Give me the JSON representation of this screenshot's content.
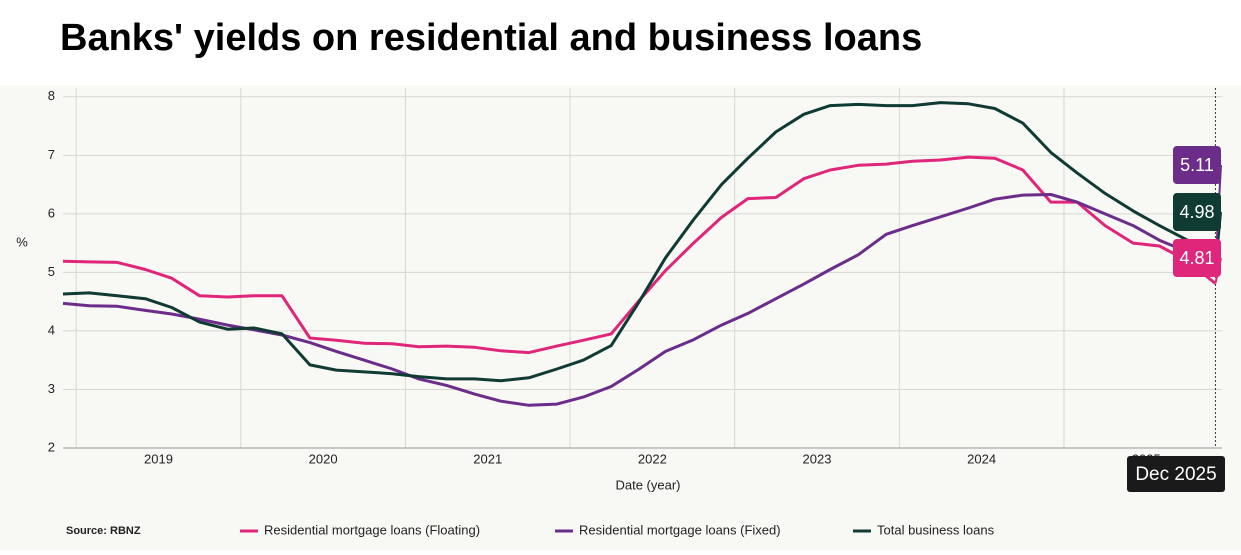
{
  "chart_data": {
    "type": "line",
    "title": "Banks' yields on residential and business loans",
    "y_label": "%",
    "x_label": "Date (year)",
    "source": "Source:  RBNZ",
    "hover_label": "Dec 2025",
    "x": [
      2018.92,
      2019.08,
      2019.25,
      2019.42,
      2019.58,
      2019.75,
      2019.92,
      2020.08,
      2020.25,
      2020.42,
      2020.58,
      2020.75,
      2020.92,
      2021.08,
      2021.25,
      2021.42,
      2021.58,
      2021.75,
      2021.92,
      2022.08,
      2022.25,
      2022.42,
      2022.58,
      2022.75,
      2022.92,
      2023.08,
      2023.25,
      2023.42,
      2023.58,
      2023.75,
      2023.92,
      2024.08,
      2024.25,
      2024.42,
      2024.58,
      2024.75,
      2024.92,
      2025.08,
      2025.25,
      2025.42,
      2025.58,
      2025.75,
      2025.92
    ],
    "series": [
      {
        "name": "Residential mortgage loans (Floating)",
        "color": "#e0267a",
        "values": [
          5.19,
          5.18,
          5.17,
          5.05,
          4.9,
          4.6,
          4.58,
          4.6,
          4.6,
          3.88,
          3.84,
          3.79,
          3.78,
          3.73,
          3.74,
          3.72,
          3.66,
          3.63,
          3.74,
          3.84,
          3.95,
          4.52,
          5.03,
          5.5,
          5.94,
          6.26,
          6.28,
          6.6,
          6.75,
          6.83,
          6.85,
          6.9,
          6.92,
          6.97,
          6.95,
          6.75,
          6.2,
          6.2,
          5.8,
          5.5,
          5.45,
          5.2,
          4.81
        ]
      },
      {
        "name": "Residential mortgage loans (Fixed)",
        "color": "#6b2c8a",
        "values": [
          4.47,
          4.43,
          4.42,
          4.35,
          4.29,
          4.2,
          4.1,
          4.02,
          3.93,
          3.8,
          3.65,
          3.5,
          3.35,
          3.18,
          3.07,
          2.92,
          2.8,
          2.73,
          2.75,
          2.87,
          3.05,
          3.35,
          3.65,
          3.85,
          4.1,
          4.3,
          4.55,
          4.8,
          5.05,
          5.3,
          5.65,
          5.8,
          5.95,
          6.1,
          6.25,
          6.32,
          6.33,
          6.2,
          6.0,
          5.8,
          5.55,
          5.35,
          5.11
        ]
      },
      {
        "name": "Total business loans",
        "color": "#0f3b32",
        "values": [
          4.63,
          4.65,
          4.6,
          4.55,
          4.4,
          4.15,
          4.03,
          4.05,
          3.95,
          3.42,
          3.33,
          3.3,
          3.27,
          3.22,
          3.18,
          3.18,
          3.15,
          3.2,
          3.35,
          3.5,
          3.75,
          4.5,
          5.25,
          5.9,
          6.5,
          6.95,
          7.4,
          7.7,
          7.85,
          7.87,
          7.85,
          7.85,
          7.9,
          7.88,
          7.8,
          7.55,
          7.05,
          6.7,
          6.35,
          6.05,
          5.8,
          5.55,
          4.98
        ]
      }
    ],
    "xlim": [
      2018.92,
      2025.96
    ],
    "xticks": [
      {
        "value": 2019.5,
        "label": "2019"
      },
      {
        "value": 2020.5,
        "label": "2020"
      },
      {
        "value": 2021.5,
        "label": "2021"
      },
      {
        "value": 2022.5,
        "label": "2022"
      },
      {
        "value": 2023.5,
        "label": "2023"
      },
      {
        "value": 2024.5,
        "label": "2024"
      },
      {
        "value": 2025.5,
        "label": "2025"
      }
    ],
    "xgrid": [
      2019,
      2020,
      2021,
      2022,
      2023,
      2024,
      2025
    ],
    "ylim": [
      2,
      8.15
    ],
    "yticks": [
      2,
      3,
      4,
      5,
      6,
      7,
      8
    ],
    "grid": true,
    "legend": "bottom"
  }
}
